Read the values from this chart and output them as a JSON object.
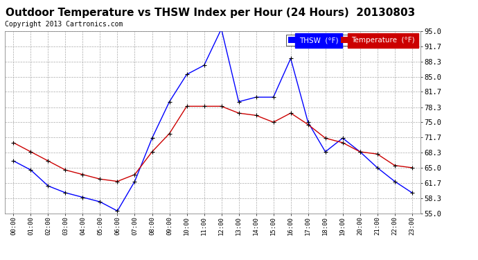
{
  "title": "Outdoor Temperature vs THSW Index per Hour (24 Hours)  20130803",
  "copyright": "Copyright 2013 Cartronics.com",
  "hours": [
    "00:00",
    "01:00",
    "02:00",
    "03:00",
    "04:00",
    "05:00",
    "06:00",
    "07:00",
    "08:00",
    "09:00",
    "10:00",
    "11:00",
    "12:00",
    "13:00",
    "14:00",
    "15:00",
    "16:00",
    "17:00",
    "18:00",
    "19:00",
    "20:00",
    "21:00",
    "22:00",
    "23:00"
  ],
  "thsw": [
    66.5,
    64.5,
    61.0,
    59.5,
    58.5,
    57.5,
    55.5,
    62.0,
    71.5,
    79.5,
    85.5,
    87.5,
    95.5,
    79.5,
    80.5,
    80.5,
    89.0,
    75.0,
    68.5,
    71.5,
    68.5,
    65.0,
    62.0,
    59.5
  ],
  "temperature": [
    70.5,
    68.5,
    66.5,
    64.5,
    63.5,
    62.5,
    62.0,
    63.5,
    68.5,
    72.5,
    78.5,
    78.5,
    78.5,
    77.0,
    76.5,
    75.0,
    77.0,
    74.5,
    71.5,
    70.5,
    68.5,
    68.0,
    65.5,
    65.0
  ],
  "thsw_color": "#0000ff",
  "temp_color": "#cc0000",
  "background_color": "#ffffff",
  "grid_color": "#aaaaaa",
  "ylim": [
    55.0,
    95.0
  ],
  "yticks": [
    55.0,
    58.3,
    61.7,
    65.0,
    68.3,
    71.7,
    75.0,
    78.3,
    81.7,
    85.0,
    88.3,
    91.7,
    95.0
  ],
  "title_fontsize": 11,
  "copyright_fontsize": 7,
  "legend_thsw_label": "THSW  (°F)",
  "legend_temp_label": "Temperature  (°F)"
}
